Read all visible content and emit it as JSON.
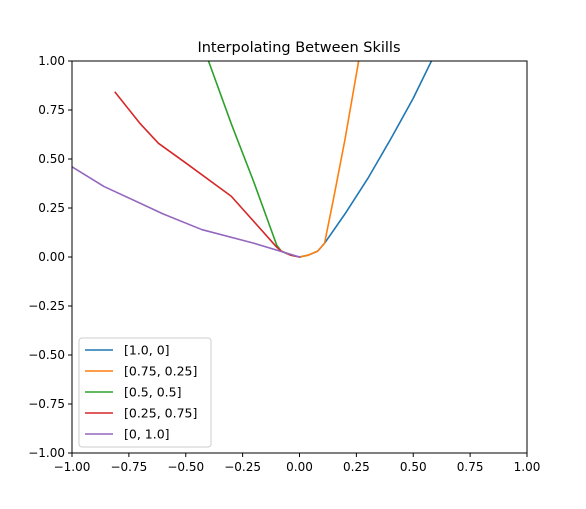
{
  "chart_data": {
    "type": "line",
    "title": "Interpolating Between Skills",
    "xlabel": "",
    "ylabel": "",
    "xlim": [
      -1.0,
      1.0
    ],
    "ylim": [
      -1.0,
      1.0
    ],
    "xticks": [
      "−1.00",
      "−0.75",
      "−0.50",
      "−0.25",
      "0.00",
      "0.25",
      "0.50",
      "0.75",
      "1.00"
    ],
    "yticks": [
      "−1.00",
      "−0.75",
      "−0.50",
      "−0.25",
      "0.00",
      "0.25",
      "0.50",
      "0.75",
      "1.00"
    ],
    "xtick_values": [
      -1.0,
      -0.75,
      -0.5,
      -0.25,
      0.0,
      0.25,
      0.5,
      0.75,
      1.0
    ],
    "ytick_values": [
      -1.0,
      -0.75,
      -0.5,
      -0.25,
      0.0,
      0.25,
      0.5,
      0.75,
      1.0
    ],
    "grid": false,
    "legend_position": "lower-left",
    "series": [
      {
        "name": "[1.0, 0]",
        "color": "#1f77b4",
        "points": [
          [
            0.0,
            0.0
          ],
          [
            0.04,
            0.01
          ],
          [
            0.08,
            0.03
          ],
          [
            0.11,
            0.07
          ],
          [
            0.2,
            0.22
          ],
          [
            0.3,
            0.4
          ],
          [
            0.4,
            0.6
          ],
          [
            0.5,
            0.81
          ],
          [
            0.58,
            1.0
          ]
        ]
      },
      {
        "name": "[0.75, 0.25]",
        "color": "#ff7f0e",
        "points": [
          [
            0.0,
            0.0
          ],
          [
            0.04,
            0.01
          ],
          [
            0.08,
            0.03
          ],
          [
            0.11,
            0.07
          ],
          [
            0.15,
            0.3
          ],
          [
            0.2,
            0.6
          ],
          [
            0.26,
            1.0
          ]
        ]
      },
      {
        "name": "[0.5, 0.5]",
        "color": "#2ca02c",
        "points": [
          [
            0.0,
            0.0
          ],
          [
            -0.04,
            0.01
          ],
          [
            -0.08,
            0.03
          ],
          [
            -0.1,
            0.06
          ],
          [
            -0.2,
            0.38
          ],
          [
            -0.3,
            0.68
          ],
          [
            -0.4,
            1.0
          ]
        ]
      },
      {
        "name": "[0.25, 0.75]",
        "color": "#d62728",
        "points": [
          [
            0.0,
            0.0
          ],
          [
            -0.04,
            0.01
          ],
          [
            -0.08,
            0.03
          ],
          [
            -0.1,
            0.05
          ],
          [
            -0.3,
            0.31
          ],
          [
            -0.5,
            0.48
          ],
          [
            -0.62,
            0.58
          ],
          [
            -0.7,
            0.68
          ],
          [
            -0.81,
            0.84
          ]
        ]
      },
      {
        "name": "[0, 1.0]",
        "color": "#9467bd",
        "points": [
          [
            0.0,
            0.0
          ],
          [
            -0.2,
            0.07
          ],
          [
            -0.43,
            0.14
          ],
          [
            -0.6,
            0.22
          ],
          [
            -0.86,
            0.36
          ],
          [
            -1.0,
            0.46
          ]
        ]
      }
    ]
  }
}
